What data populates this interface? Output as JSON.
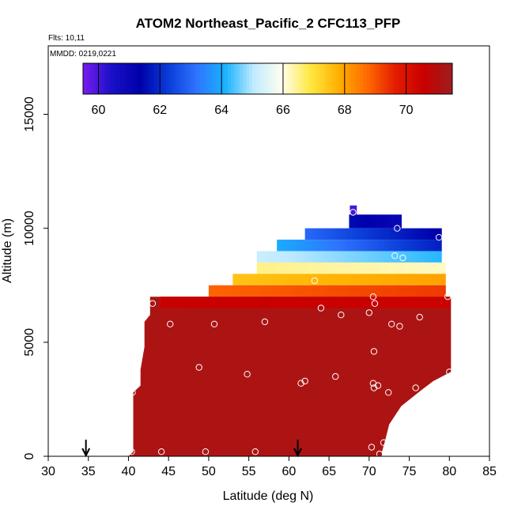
{
  "chart_data": {
    "type": "heatmap",
    "title": "ATOM2 Northeast_Pacific_2 CFC113_PFP",
    "annotations": {
      "flights": "Flts: 10,11",
      "dates": "MMDD: 0219,0221"
    },
    "xlabel": "Latitude (deg N)",
    "ylabel": "Altitude (m)",
    "xlim": [
      30,
      85
    ],
    "ylim": [
      0,
      18000
    ],
    "xticks": [
      "30",
      "35",
      "40",
      "45",
      "50",
      "55",
      "60",
      "65",
      "70",
      "75",
      "80",
      "85"
    ],
    "yticks": [
      "0",
      "5000",
      "10000",
      "15000"
    ],
    "colorbar": {
      "range": [
        59.5,
        71.5
      ],
      "ticks": [
        "60",
        "62",
        "64",
        "66",
        "68",
        "70"
      ],
      "colors": [
        "#7a1cf0",
        "#1a10c8",
        "#0000aa",
        "#0a3cd8",
        "#2f74ff",
        "#18b2ff",
        "#bfeaff",
        "#fffff0",
        "#ffe840",
        "#ffb000",
        "#ff6a00",
        "#e41c00",
        "#c80000",
        "#9e1e1e"
      ]
    },
    "field_bands": [
      {
        "alt_low": 10600,
        "alt_high": 11000,
        "lat_min": 67.6,
        "lat_max": 68.4,
        "v_start": 60.0,
        "v_end": 60.0
      },
      {
        "alt_low": 10000,
        "alt_high": 10600,
        "lat_min": 67.5,
        "lat_max": 74.0,
        "v_start": 61.5,
        "v_end": 61.0
      },
      {
        "alt_low": 9500,
        "alt_high": 10000,
        "lat_min": 62.0,
        "lat_max": 79.0,
        "v_start": 63.0,
        "v_end": 61.3
      },
      {
        "alt_low": 9000,
        "alt_high": 9500,
        "lat_min": 58.5,
        "lat_max": 79.0,
        "v_start": 64.0,
        "v_end": 61.8
      },
      {
        "alt_low": 8500,
        "alt_high": 9000,
        "lat_min": 56.0,
        "lat_max": 79.0,
        "v_start": 65.2,
        "v_end": 64.2
      },
      {
        "alt_low": 8000,
        "alt_high": 8500,
        "lat_min": 56.0,
        "lat_max": 79.5,
        "v_start": 66.5,
        "v_end": 66.2
      },
      {
        "alt_low": 7500,
        "alt_high": 8000,
        "lat_min": 53.0,
        "lat_max": 79.5,
        "v_start": 67.5,
        "v_end": 68.0
      },
      {
        "alt_low": 7000,
        "alt_high": 7500,
        "lat_min": 50.0,
        "lat_max": 79.5,
        "v_start": 68.8,
        "v_end": 69.3
      },
      {
        "alt_low": 6500,
        "alt_high": 7000,
        "lat_min": 44.0,
        "lat_max": 80.0,
        "v_start": 70.6,
        "v_end": 70.5
      }
    ],
    "main_region": {
      "value": 71.2,
      "outline_lat_alt": [
        [
          40.6,
          200
        ],
        [
          40.6,
          2800
        ],
        [
          41.5,
          3100
        ],
        [
          41.5,
          3800
        ],
        [
          42.0,
          4800
        ],
        [
          42.0,
          5900
        ],
        [
          42.7,
          6200
        ],
        [
          42.7,
          7000
        ],
        [
          80.2,
          7000
        ],
        [
          80.2,
          3700
        ],
        [
          78.0,
          3300
        ],
        [
          76.5,
          2900
        ],
        [
          74.0,
          2200
        ],
        [
          72.5,
          1400
        ],
        [
          72.0,
          700
        ],
        [
          71.6,
          200
        ],
        [
          71.6,
          0
        ],
        [
          40.0,
          0
        ]
      ]
    },
    "sample_points": [
      [
        68.0,
        10700
      ],
      [
        73.5,
        10000
      ],
      [
        78.7,
        9600
      ],
      [
        73.2,
        8800
      ],
      [
        74.2,
        8700
      ],
      [
        63.2,
        7700
      ],
      [
        79.8,
        7000
      ],
      [
        70.5,
        7000
      ],
      [
        70.7,
        6700
      ],
      [
        43.0,
        6700
      ],
      [
        64.0,
        6500
      ],
      [
        66.5,
        6200
      ],
      [
        70.0,
        6300
      ],
      [
        76.3,
        6100
      ],
      [
        45.2,
        5800
      ],
      [
        50.7,
        5800
      ],
      [
        57.0,
        5900
      ],
      [
        72.8,
        5800
      ],
      [
        73.8,
        5700
      ],
      [
        70.6,
        4600
      ],
      [
        48.8,
        3900
      ],
      [
        54.8,
        3600
      ],
      [
        65.8,
        3500
      ],
      [
        62.0,
        3300
      ],
      [
        61.5,
        3200
      ],
      [
        70.5,
        3200
      ],
      [
        71.1,
        3100
      ],
      [
        70.6,
        3000
      ],
      [
        80.0,
        3700
      ],
      [
        40.5,
        2800
      ],
      [
        75.8,
        3000
      ],
      [
        72.4,
        2800
      ],
      [
        71.8,
        600
      ],
      [
        70.3,
        400
      ],
      [
        71.3,
        100
      ],
      [
        40.4,
        200
      ],
      [
        44.1,
        200
      ],
      [
        49.6,
        200
      ],
      [
        55.8,
        200
      ]
    ],
    "flight_markers_lat": [
      34.7,
      61.1
    ]
  }
}
